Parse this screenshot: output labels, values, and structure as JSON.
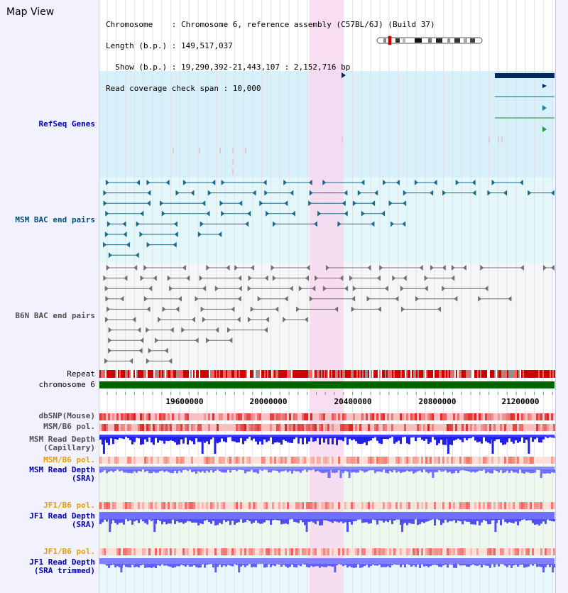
{
  "title": "Map View",
  "header": {
    "chromosome": "Chromosome    : Chromosome 6, reference assembly (C57BL/6J) (Build 37)",
    "length": "Length (b.p.) : 149,517,037",
    "show": "  Show (b.p.) : 19,290,392-21,443,107 : 2,152,716 bp",
    "coverage": "Read coverage check span : 10,000"
  },
  "tracks": {
    "refseq": "RefSeq Genes",
    "msm_bac": "MSM BAC end pairs",
    "b6n_bac": "B6N BAC end pairs",
    "repeat": "Repeat",
    "chromosome": "chromosome 6",
    "dbsnp": "dbSNP(Mouse)",
    "msm_b6_pol_1": "MSM/B6 pol.",
    "msm_depth_cap": "MSM Read Depth\n(Capillary)",
    "msm_b6_pol_2": "MSM/B6 pol.",
    "msm_depth_sra": "MSM Read Depth\n(SRA)",
    "jf1_b6_pol_1": "JF1/B6 pol.",
    "jf1_depth_sra": "JF1 Read Depth\n(SRA)",
    "jf1_b6_pol_2": "JF1/B6 pol.",
    "jf1_depth_trim": "JF1 Read Depth\n(SRA trimmed)"
  },
  "axis": {
    "ticks": [
      "19600000",
      "20000000",
      "20400000",
      "20800000",
      "21200000"
    ]
  },
  "colors": {
    "highlight": "#f8d8f0",
    "refseq_bg": "#d8f0fa",
    "msm_bg": "#e4f8fc",
    "b6n_bg": "#f4f6f8",
    "chromosome_bar": "#006400",
    "repeat": "#d00000",
    "snp_red": "#e02020",
    "depth_blue": "#3030ff",
    "depth_light": "#8888ff",
    "gene_dark": "#002a60",
    "gene_link": "#007070"
  },
  "icons": {
    "ideogram": "chromosome-ideogram-icon"
  }
}
